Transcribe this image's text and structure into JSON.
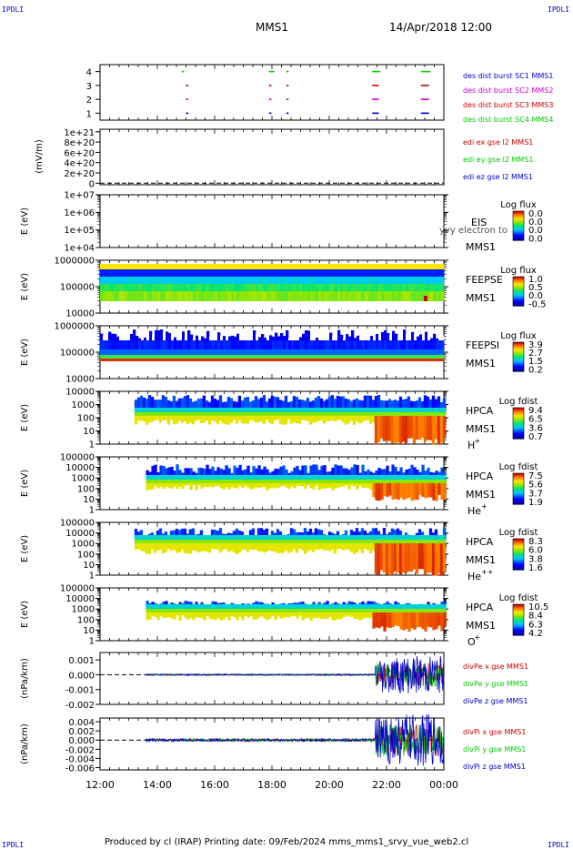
{
  "header": {
    "corner_label": "IPDLI",
    "spacecraft": "MMS1",
    "datetime": "14/Apr/2018 12:00"
  },
  "footer": {
    "text": "Produced by cl (IRAP)    Printing date: 09/Feb/2024    mms_mms1_srvy_vue_web2.cl"
  },
  "x_axis": {
    "ticks": [
      "12:00",
      "14:00",
      "16:00",
      "18:00",
      "20:00",
      "22:00",
      "00:00"
    ],
    "range_hours": [
      12,
      24
    ]
  },
  "chart_data": [
    {
      "type": "scatter",
      "panel": "burst-availability",
      "ylim": [
        0.5,
        4.5
      ],
      "yticks": [
        "1",
        "2",
        "3",
        "4"
      ],
      "series": [
        {
          "name": "des dist burst SC1 MMS1",
          "color": "#0000cc",
          "level": 1,
          "segments": [
            [
              15.0,
              15.05
            ],
            [
              17.9,
              17.95
            ],
            [
              18.5,
              18.55
            ],
            [
              21.5,
              21.7
            ],
            [
              23.2,
              23.45
            ]
          ]
        },
        {
          "name": "des dist burst SC2 MMS2",
          "color": "#cc00cc",
          "level": 2,
          "segments": [
            [
              15.0,
              15.05
            ],
            [
              17.9,
              17.95
            ],
            [
              18.5,
              18.55
            ],
            [
              21.5,
              21.7
            ],
            [
              23.2,
              23.45
            ]
          ]
        },
        {
          "name": "des dist burst SC3 MMS3",
          "color": "#cc0000",
          "level": 3,
          "segments": [
            [
              15.0,
              15.05
            ],
            [
              17.9,
              17.95
            ],
            [
              18.5,
              18.55
            ],
            [
              21.5,
              21.7
            ],
            [
              23.2,
              23.45
            ]
          ]
        },
        {
          "name": "des dist burst SC4 MMS4",
          "color": "#00cc00",
          "level": 4,
          "segments": [
            [
              14.85,
              14.9
            ],
            [
              17.9,
              18.05
            ],
            [
              18.5,
              18.55
            ],
            [
              21.5,
              21.75
            ],
            [
              23.2,
              23.5
            ]
          ]
        }
      ]
    },
    {
      "type": "line",
      "panel": "edi-efield",
      "ylabel": "(mV/m)",
      "yticks": [
        "1e+21",
        "8e+20",
        "6e+20",
        "4e+20",
        "2e+20",
        "0"
      ],
      "ylim": [
        -3e+19,
        1.05e+21
      ],
      "series": [
        {
          "name": "edi ex gse l2 MMS1",
          "color": "#cc0000"
        },
        {
          "name": "edi ey gse l2 MMS1",
          "color": "#00cc00"
        },
        {
          "name": "edi ez gse l2 MMS1",
          "color": "#0000cc"
        }
      ]
    },
    {
      "type": "heatmap",
      "panel": "EIS",
      "ylabel": "E (eV)",
      "yticks": [
        "1e+07",
        "1e+06",
        "1e+05",
        "1e+04"
      ],
      "instrument": "EIS",
      "species": "MMS1",
      "overlay_text": "Ly",
      "overlay_text_2": "yvy electron to",
      "colorbar": {
        "title": "Log flux",
        "ticks": [
          "0.0",
          "0.0",
          "0.0",
          "0.0"
        ]
      },
      "data_present": false
    },
    {
      "type": "heatmap",
      "panel": "FEEPSE",
      "ylabel": "E (eV)",
      "yticks": [
        "1000000",
        "100000",
        "10000"
      ],
      "instrument": "FEEPSE",
      "species": "MMS1",
      "colorbar": {
        "title": "Log flux",
        "ticks": [
          "1.0",
          "0.5",
          "0.0",
          "-0.5"
        ]
      },
      "coverage_hours": [
        12.0,
        24.0
      ],
      "energy_band_log10": [
        4.5,
        6.1
      ]
    },
    {
      "type": "heatmap",
      "panel": "FEEPSI",
      "ylabel": "E (eV)",
      "yticks": [
        "1000000",
        "100000",
        "10000"
      ],
      "instrument": "FEEPSI",
      "species": "MMS1",
      "colorbar": {
        "title": "Log flux",
        "ticks": [
          "3.9",
          "2.7",
          "1.5",
          "0.2"
        ]
      },
      "coverage_hours": [
        12.0,
        24.0
      ],
      "energy_band_log10": [
        4.7,
        5.9
      ]
    },
    {
      "type": "heatmap",
      "panel": "HPCA-H",
      "ylabel": "E (eV)",
      "yticks": [
        "10000",
        "1000",
        "100",
        "10",
        "1"
      ],
      "instrument": "HPCA",
      "species": "MMS1",
      "ion": "H",
      "ion_sup": "+",
      "colorbar": {
        "title": "Log fdist",
        "ticks": [
          "9.4",
          "6.5",
          "3.6",
          "0.7"
        ]
      },
      "coverage_hours": [
        13.2,
        24.0
      ]
    },
    {
      "type": "heatmap",
      "panel": "HPCA-He",
      "ylabel": "E (eV)",
      "yticks": [
        "100000",
        "10000",
        "1000",
        "100",
        "10",
        "1"
      ],
      "instrument": "HPCA",
      "species": "MMS1",
      "ion": "He",
      "ion_sup": "+",
      "colorbar": {
        "title": "Log fdist",
        "ticks": [
          "7.5",
          "5.6",
          "3.7",
          "1.9"
        ]
      },
      "coverage_hours": [
        13.6,
        24.0
      ]
    },
    {
      "type": "heatmap",
      "panel": "HPCA-He2",
      "ylabel": "E (eV)",
      "yticks": [
        "100000",
        "10000",
        "1000",
        "100",
        "10",
        "1"
      ],
      "instrument": "HPCA",
      "species": "MMS1",
      "ion": "He",
      "ion_sup": "++",
      "colorbar": {
        "title": "Log fdist",
        "ticks": [
          "8.3",
          "6.0",
          "3.8",
          "1.6"
        ]
      },
      "coverage_hours": [
        13.2,
        24.0
      ]
    },
    {
      "type": "heatmap",
      "panel": "HPCA-O",
      "ylabel": "E (eV)",
      "yticks": [
        "100000",
        "10000",
        "1000",
        "100",
        "10",
        "1"
      ],
      "instrument": "HPCA",
      "species": "MMS1",
      "ion": "O",
      "ion_sup": "+",
      "colorbar": {
        "title": "Log fdist",
        "ticks": [
          "10.5",
          "8.4",
          "6.3",
          "4.2"
        ]
      },
      "coverage_hours": [
        13.6,
        24.0
      ]
    },
    {
      "type": "line",
      "panel": "divPe",
      "ylabel": "(nPa/km)",
      "yticks": [
        "0.001",
        "0.000",
        "-0.001",
        "-0.002"
      ],
      "ylim": [
        -0.002,
        0.0015
      ],
      "series": [
        {
          "name": "divPe x gse MMS1",
          "color": "#cc0000"
        },
        {
          "name": "divPe y gse MMS1",
          "color": "#00cc00"
        },
        {
          "name": "divPe z gse MMS1",
          "color": "#0000cc"
        }
      ]
    },
    {
      "type": "line",
      "panel": "divPi",
      "ylabel": "(nPa/km)",
      "yticks": [
        "0.004",
        "0.002",
        "0.000",
        "-0.002",
        "-0.004",
        "-0.006"
      ],
      "ylim": [
        -0.0065,
        0.0048
      ],
      "series": [
        {
          "name": "divPi x gse MMS1",
          "color": "#cc0000"
        },
        {
          "name": "divPi y gse MMS1",
          "color": "#00cc00"
        },
        {
          "name": "divPi z gse MMS1",
          "color": "#0000cc"
        }
      ]
    }
  ]
}
